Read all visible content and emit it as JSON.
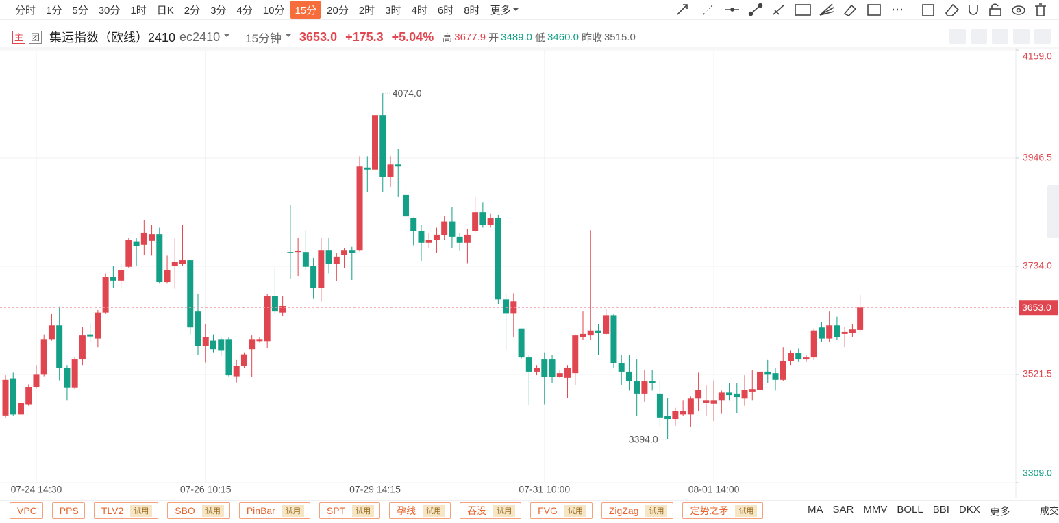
{
  "toolbar": {
    "periods": [
      "分时",
      "1分",
      "5分",
      "30分",
      "1时",
      "日K",
      "2分",
      "3分",
      "4分",
      "10分",
      "15分",
      "20分",
      "2时",
      "3时",
      "4时",
      "6时",
      "8时",
      "更多"
    ],
    "active": "15分"
  },
  "header": {
    "tags": [
      "主",
      "团"
    ],
    "name": "集运指数（欧线）2410",
    "code": "ec2410",
    "period": "15分钟",
    "last": "3653.0",
    "change": "+175.3",
    "change_pct": "+5.04%",
    "high_label": "高",
    "high": "3677.9",
    "open_label": "开",
    "open": "3489.0",
    "low_label": "低",
    "low": "3460.0",
    "prev_close_label": "昨收",
    "prev_close": "3515.0"
  },
  "chart_data": {
    "type": "candlestick",
    "up_color": "#e0464f",
    "down_color": "#14a086",
    "grid": true,
    "categories": [
      null,
      null,
      null,
      null,
      "07-24 14:30",
      null,
      null,
      null,
      null,
      null,
      null,
      null,
      null,
      null,
      null,
      null,
      null,
      null,
      null,
      null,
      null,
      null,
      null,
      null,
      null,
      null,
      "07-26 10:15",
      null,
      null,
      null,
      null,
      null,
      null,
      null,
      null,
      null,
      null,
      null,
      null,
      null,
      null,
      null,
      null,
      null,
      null,
      null,
      null,
      null,
      "07-29 14:15",
      null,
      null,
      null,
      null,
      null,
      null,
      null,
      null,
      null,
      null,
      null,
      null,
      null,
      null,
      null,
      null,
      null,
      null,
      null,
      null,
      null,
      "07-31 10:00",
      null,
      null,
      null,
      null,
      null,
      null,
      null,
      null,
      null,
      null,
      null,
      null,
      null,
      null,
      null,
      null,
      null,
      null,
      null,
      null,
      null,
      "08-01 14:00",
      null,
      null,
      null,
      null,
      null,
      null,
      null,
      null,
      null,
      null,
      null,
      null,
      null,
      null,
      null,
      null,
      null,
      null,
      null
    ],
    "open": [
      3441,
      3514,
      3443,
      3463,
      3497,
      3521,
      3591,
      3618,
      3534,
      3495,
      3551,
      3600,
      3592,
      3643,
      3713,
      3706,
      3733,
      3783,
      3776,
      3784,
      3797,
      3703,
      3735,
      3739,
      3746,
      3645,
      3578,
      3588,
      3591,
      3591,
      3518,
      3538,
      3571,
      3587,
      3587,
      3675,
      3643,
      3762,
      3762,
      3762,
      3735,
      3692,
      3766,
      3739,
      3756,
      3766,
      3766,
      3928,
      3924,
      4031,
      3910,
      3934,
      3874,
      3829,
      3803,
      3780,
      3786,
      3795,
      3822,
      3792,
      3780,
      3803,
      3840,
      3816,
      3829,
      3669,
      3642,
      3612,
      3555,
      3527,
      3551,
      3551,
      3517,
      3515,
      3524,
      3595,
      3598,
      3608,
      3601,
      3638,
      3544,
      3527,
      3508,
      3484,
      3508,
      3484,
      3440,
      3434,
      3443,
      3443,
      3474,
      3466,
      3464,
      3470,
      3486,
      3484,
      3474,
      3488,
      3491,
      3527,
      3524,
      3511,
      3548,
      3564,
      3551,
      3555,
      3614,
      3592,
      3618,
      3601,
      3603,
      3609
    ],
    "high": [
      3520,
      3525,
      3470,
      3502,
      3540,
      3600,
      3640,
      3655,
      3540,
      3555,
      3615,
      3622,
      3648,
      3720,
      3735,
      3740,
      3790,
      3790,
      3825,
      3815,
      3810,
      3755,
      3790,
      3815,
      3746,
      3680,
      3620,
      3600,
      3594,
      3595,
      3550,
      3565,
      3598,
      3594,
      3680,
      3730,
      3675,
      3855,
      3790,
      3805,
      3750,
      3790,
      3790,
      3760,
      3770,
      3772,
      3950,
      3950,
      4035,
      4074,
      3950,
      3965,
      3895,
      3830,
      3815,
      3800,
      3810,
      3833,
      3850,
      3800,
      3808,
      3870,
      3860,
      3838,
      3835,
      3680,
      3681,
      3612,
      3560,
      3540,
      3565,
      3560,
      3530,
      3540,
      3600,
      3645,
      3805,
      3620,
      3650,
      3641,
      3560,
      3560,
      3551,
      3530,
      3530,
      3510,
      3475,
      3456,
      3470,
      3478,
      3525,
      3500,
      3510,
      3490,
      3505,
      3505,
      3520,
      3530,
      3535,
      3550,
      3535,
      3575,
      3568,
      3572,
      3560,
      3612,
      3625,
      3645,
      3635,
      3615,
      3620,
      3677.9
    ],
    "low": [
      3437,
      3441,
      3440,
      3460,
      3494,
      3518,
      3588,
      3510,
      3470,
      3493,
      3540,
      3585,
      3575,
      3640,
      3692,
      3690,
      3730,
      3735,
      3756,
      3755,
      3700,
      3700,
      3690,
      3735,
      3600,
      3560,
      3545,
      3565,
      3558,
      3518,
      3506,
      3535,
      3517,
      3584,
      3574,
      3640,
      3636,
      3709,
      3715,
      3727,
      3670,
      3665,
      3720,
      3705,
      3730,
      3707,
      3763,
      3880,
      3895,
      3880,
      3890,
      3870,
      3806,
      3775,
      3745,
      3770,
      3760,
      3786,
      3770,
      3765,
      3740,
      3800,
      3810,
      3810,
      3660,
      3569,
      3595,
      3553,
      3462,
      3520,
      3463,
      3505,
      3515,
      3475,
      3500,
      3590,
      3590,
      3560,
      3598,
      3535,
      3500,
      3490,
      3440,
      3468,
      3490,
      3420,
      3394,
      3420,
      3440,
      3418,
      3450,
      3440,
      3430,
      3444,
      3470,
      3445,
      3460,
      3470,
      3488,
      3505,
      3490,
      3508,
      3540,
      3546,
      3546,
      3550,
      3585,
      3585,
      3590,
      3575,
      3595,
      3605
    ],
    "close": [
      3511,
      3443,
      3466,
      3497,
      3521,
      3591,
      3618,
      3534,
      3495,
      3551,
      3598,
      3596,
      3643,
      3713,
      3706,
      3726,
      3786,
      3773,
      3800,
      3797,
      3703,
      3726,
      3743,
      3746,
      3614,
      3578,
      3595,
      3571,
      3568,
      3520,
      3538,
      3561,
      3591,
      3591,
      3675,
      3645,
      3656,
      3760,
      3765,
      3733,
      3692,
      3766,
      3739,
      3753,
      3766,
      3760,
      3930,
      3924,
      4031,
      3910,
      3934,
      3930,
      3832,
      3803,
      3780,
      3786,
      3796,
      3822,
      3792,
      3780,
      3796,
      3840,
      3816,
      3829,
      3669,
      3642,
      3665,
      3555,
      3527,
      3535,
      3517,
      3517,
      3524,
      3535,
      3598,
      3601,
      3608,
      3603,
      3638,
      3544,
      3527,
      3508,
      3484,
      3508,
      3504,
      3437,
      3434,
      3450,
      3450,
      3474,
      3491,
      3470,
      3470,
      3486,
      3481,
      3477,
      3491,
      3493,
      3527,
      3521,
      3511,
      3548,
      3564,
      3551,
      3555,
      3608,
      3592,
      3618,
      3595,
      3605,
      3610,
      3653
    ],
    "ylim": [
      3309,
      4159
    ],
    "yticks": [
      {
        "value": 3309,
        "label": "3309.0"
      },
      {
        "value": 3521.5,
        "label": "3521.5"
      },
      {
        "value": 3734,
        "label": "3734.0"
      },
      {
        "value": 3946.5,
        "label": "3946.5"
      },
      {
        "value": 4159,
        "label": "4159.0"
      }
    ],
    "last_price": {
      "value": 3653,
      "label": "3653.0"
    },
    "max_marker": {
      "value": 4074,
      "label": "4074.0"
    },
    "min_marker": {
      "value": 3394,
      "label": "3394.0"
    }
  },
  "indicators": [
    {
      "name": "VPC"
    },
    {
      "name": "PPS"
    },
    {
      "name": "TLV2",
      "badge": "试用"
    },
    {
      "name": "SBO",
      "badge": "试用"
    },
    {
      "name": "PinBar",
      "badge": "试用"
    },
    {
      "name": "SPT",
      "badge": "试用"
    },
    {
      "name": "孕线",
      "badge": "试用"
    },
    {
      "name": "吞没",
      "badge": "试用"
    },
    {
      "name": "FVG",
      "badge": "试用"
    },
    {
      "name": "ZigZag",
      "badge": "试用"
    },
    {
      "name": "定势之矛",
      "badge": "试用"
    }
  ],
  "indicator_tabs": [
    "MA",
    "SAR",
    "MMV",
    "BOLL",
    "BBI",
    "DKX",
    "更多"
  ],
  "volume_tab": "成交"
}
